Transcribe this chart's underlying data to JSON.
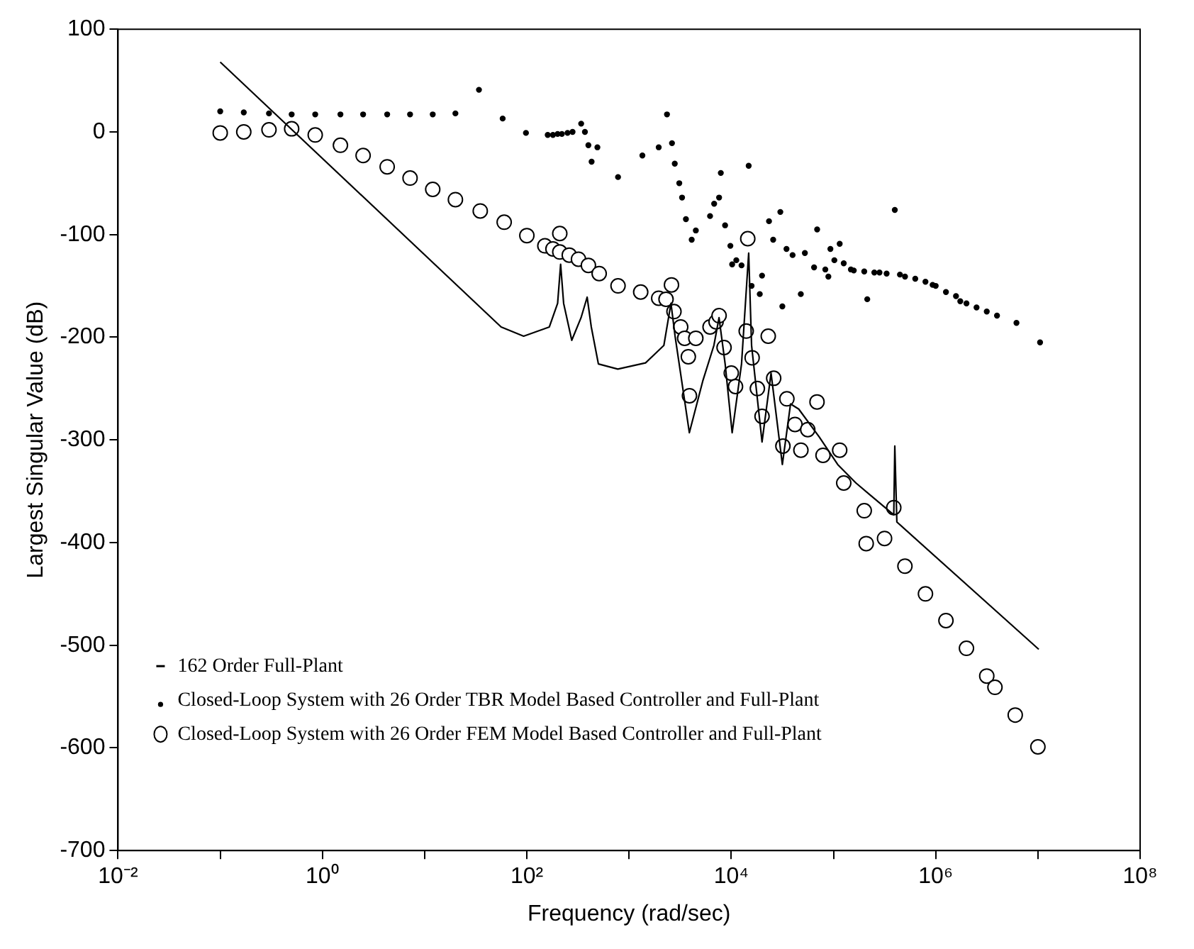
{
  "chart_data": {
    "type": "line",
    "xlabel": "Frequency (rad/sec)",
    "ylabel": "Largest Singular Value (dB)",
    "log": "x",
    "grid": false,
    "legend": "bottom left",
    "xlim": [
      0.01,
      100000000
    ],
    "ylim": [
      -700,
      100
    ],
    "xticks": [
      {
        "value": 0.01,
        "label": "10⁻²"
      },
      {
        "value": 0.1,
        "label": null
      },
      {
        "value": 1,
        "label": "10⁰"
      },
      {
        "value": 10,
        "label": null
      },
      {
        "value": 100,
        "label": "10²"
      },
      {
        "value": 1000,
        "label": null
      },
      {
        "value": 10000,
        "label": "10⁴"
      },
      {
        "value": 100000,
        "label": null
      },
      {
        "value": 1000000,
        "label": "10⁶"
      },
      {
        "value": 10000000,
        "label": null
      },
      {
        "value": 100000000,
        "label": "10⁸"
      }
    ],
    "yticks": [
      -700,
      -600,
      -500,
      -400,
      -300,
      -200,
      -100,
      0,
      100
    ],
    "series": [
      {
        "name": "162 Order Full-Plant",
        "type": "line",
        "color": "#000000",
        "marker": "none",
        "line_style": "solid",
        "x": [
          0.1,
          56,
          93,
          166,
          200,
          214,
          229,
          275,
          339,
          389,
          427,
          501,
          776,
          1450,
          2190,
          2570,
          2820,
          3890,
          5250,
          6760,
          7590,
          8710,
          10200,
          12600,
          14800,
          15800,
          20000,
          24500,
          31600,
          38000,
          45700,
          72400,
          110000,
          166000,
          224000,
          389000,
          398000,
          417000,
          10200000
        ],
        "values": [
          68,
          -190,
          -199,
          -190,
          -167,
          -129,
          -167,
          -203,
          -181,
          -161,
          -190,
          -226,
          -231,
          -225,
          -208,
          -167,
          -199,
          -293,
          -243,
          -208,
          -181,
          -226,
          -293,
          -226,
          -118,
          -208,
          -302,
          -235,
          -324,
          -265,
          -270,
          -297,
          -324,
          -342,
          -353,
          -373,
          -306,
          -380,
          -504
        ]
      },
      {
        "name": "Closed-Loop System with 26 Order TBR Model Based Controller and Full-Plant",
        "type": "scatter",
        "color": "#000000",
        "marker": "circle",
        "x": [
          0.1,
          0.17,
          0.3,
          0.5,
          0.85,
          1.5,
          2.5,
          4.3,
          7.2,
          12,
          20,
          34,
          58,
          98,
          160,
          180,
          200,
          220,
          250,
          280,
          340,
          370,
          400,
          430,
          490,
          780,
          1350,
          1950,
          2350,
          2630,
          2800,
          3100,
          3300,
          3600,
          4100,
          4500,
          6200,
          6800,
          7600,
          7900,
          8700,
          9800,
          10200,
          11200,
          12600,
          14800,
          15800,
          19000,
          20000,
          23400,
          25700,
          30200,
          31600,
          34700,
          39800,
          47900,
          52500,
          64600,
          69200,
          83200,
          89100,
          93300,
          102000,
          115000,
          126000,
          148000,
          158000,
          200000,
          214000,
          251000,
          282000,
          331000,
          398000,
          447000,
          501000,
          631000,
          794000,
          933000,
          1000000,
          1260000,
          1580000,
          1740000,
          2000000,
          2510000,
          3160000,
          3980000,
          6170000,
          10500000
        ],
        "values": [
          20,
          19,
          18,
          17,
          17,
          17,
          17,
          17,
          17,
          17,
          18,
          41,
          13,
          -1,
          -3,
          -3,
          -2,
          -2,
          -1,
          0,
          8,
          0,
          -13,
          -29,
          -15,
          -44,
          -23,
          -15,
          17,
          -11,
          -31,
          -50,
          -64,
          -85,
          -105,
          -96,
          -82,
          -70,
          -64,
          -40,
          -91,
          -111,
          -129,
          -125,
          -130,
          -33,
          -150,
          -158,
          -140,
          -87,
          -105,
          -78,
          -170,
          -114,
          -120,
          -158,
          -118,
          -132,
          -95,
          -134,
          -141,
          -114,
          -125,
          -109,
          -128,
          -134,
          -135,
          -136,
          -163,
          -137,
          -137,
          -138,
          -76,
          -139,
          -141,
          -143,
          -146,
          -149,
          -150,
          -156,
          -160,
          -165,
          -167,
          -171,
          -175,
          -179,
          -186,
          -205
        ]
      },
      {
        "name": "Closed-Loop System with 26 Order FEM Model Based Controller and Full-Plant",
        "type": "scatter",
        "color": "#000000",
        "marker": "circle",
        "x": [
          0.1,
          0.17,
          0.3,
          0.5,
          0.85,
          1.5,
          2.5,
          4.3,
          7.2,
          12,
          20,
          35,
          60,
          100,
          150,
          180,
          210,
          210,
          260,
          320,
          400,
          510,
          780,
          1300,
          1950,
          2300,
          2600,
          2750,
          3200,
          3500,
          3800,
          3900,
          4500,
          6200,
          7100,
          7600,
          8500,
          10000,
          11000,
          14000,
          14500,
          16000,
          18000,
          20000,
          23000,
          26000,
          32000,
          35000,
          42000,
          48000,
          56000,
          69000,
          79000,
          115000,
          126000,
          200000,
          209000,
          316000,
          389000,
          500000,
          794000,
          1260000,
          2000000,
          3160000,
          3800000,
          6000000,
          10000000
        ],
        "values": [
          -1,
          0,
          2,
          3,
          -3,
          -13,
          -23,
          -34,
          -45,
          -56,
          -66,
          -77,
          -88,
          -101,
          -111,
          -114,
          -99,
          -117,
          -120,
          -124,
          -130,
          -138,
          -150,
          -156,
          -162,
          -163,
          -149,
          -175,
          -190,
          -201,
          -219,
          -257,
          -201,
          -190,
          -185,
          -179,
          -210,
          -235,
          -248,
          -194,
          -104,
          -220,
          -250,
          -277,
          -199,
          -240,
          -306,
          -260,
          -285,
          -310,
          -290,
          -263,
          -315,
          -310,
          -342,
          -369,
          -401,
          -396,
          -366,
          -423,
          -450,
          -476,
          -503,
          -530,
          -541,
          -568,
          -599
        ]
      }
    ]
  }
}
